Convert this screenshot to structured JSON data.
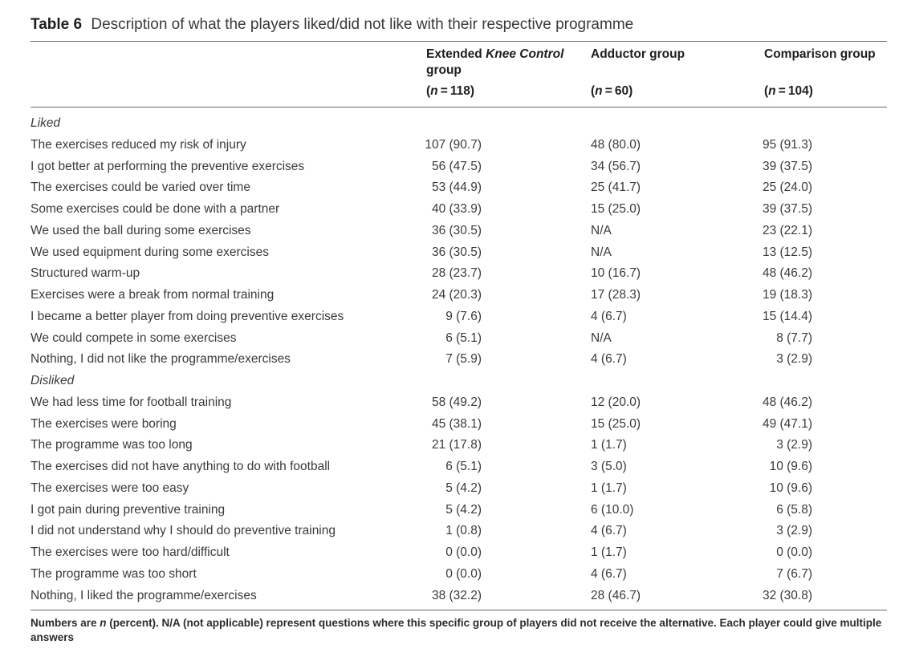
{
  "caption": {
    "number": "Table 6",
    "text": "Description of what the players liked/did not like with their respective programme"
  },
  "columns": [
    {
      "pre": "Extended ",
      "ital": "Knee Control",
      "post": " group",
      "n_prefix": "(",
      "n_var": "n",
      "n_rest": " = 118)"
    },
    {
      "pre": "Adductor group",
      "ital": "",
      "post": "",
      "n_prefix": "(",
      "n_var": "n",
      "n_rest": " = 60)"
    },
    {
      "pre": "Comparison group",
      "ital": "",
      "post": "",
      "n_prefix": "(",
      "n_var": "n",
      "n_rest": " = 104)"
    }
  ],
  "rows": [
    {
      "label": "Liked",
      "section": true,
      "v": [
        "",
        "",
        ""
      ]
    },
    {
      "label": "The exercises reduced my risk of injury",
      "v": [
        "107 (90.7)",
        "48 (80.0)",
        "95 (91.3)"
      ]
    },
    {
      "label": "I got better at performing the preventive exercises",
      "v": [
        "56 (47.5)",
        "34 (56.7)",
        "39 (37.5)"
      ]
    },
    {
      "label": "The exercises could be varied over time",
      "v": [
        "53 (44.9)",
        "25 (41.7)",
        "25 (24.0)"
      ]
    },
    {
      "label": "Some exercises could be done with a partner",
      "v": [
        "40 (33.9)",
        "15 (25.0)",
        "39 (37.5)"
      ]
    },
    {
      "label": "We used the ball during some exercises",
      "v": [
        "36 (30.5)",
        "N/A",
        "23 (22.1)"
      ]
    },
    {
      "label": "We used equipment during some exercises",
      "v": [
        "36 (30.5)",
        "N/A",
        "13 (12.5)"
      ]
    },
    {
      "label": "Structured warm-up",
      "v": [
        "28 (23.7)",
        "10 (16.7)",
        "48 (46.2)"
      ]
    },
    {
      "label": "Exercises were a break from normal training",
      "v": [
        "24 (20.3)",
        "17 (28.3)",
        "19 (18.3)"
      ]
    },
    {
      "label": "I became a better player from doing preventive exercises",
      "v": [
        "9 (7.6)",
        "4 (6.7)",
        "15 (14.4)"
      ]
    },
    {
      "label": "We could compete in some exercises",
      "v": [
        "6 (5.1)",
        "N/A",
        "8 (7.7)"
      ]
    },
    {
      "label": "Nothing, I did not like the programme/exercises",
      "v": [
        "7 (5.9)",
        "4 (6.7)",
        "3 (2.9)"
      ]
    },
    {
      "label": "Disliked",
      "section": true,
      "v": [
        "",
        "",
        ""
      ]
    },
    {
      "label": "We had less time for football training",
      "v": [
        "58 (49.2)",
        "12 (20.0)",
        "48 (46.2)"
      ]
    },
    {
      "label": "The exercises were boring",
      "v": [
        "45 (38.1)",
        "15 (25.0)",
        "49 (47.1)"
      ]
    },
    {
      "label": "The programme was too long",
      "v": [
        "21 (17.8)",
        "1 (1.7)",
        "3 (2.9)"
      ]
    },
    {
      "label": "The exercises did not have anything to do with football",
      "v": [
        "6 (5.1)",
        "3 (5.0)",
        "10 (9.6)"
      ]
    },
    {
      "label": "The exercises were too easy",
      "v": [
        "5 (4.2)",
        "1 (1.7)",
        "10 (9.6)"
      ]
    },
    {
      "label": "I got pain during preventive training",
      "v": [
        "5 (4.2)",
        "6 (10.0)",
        "6 (5.8)"
      ]
    },
    {
      "label": "I did not understand why I should do preventive training",
      "v": [
        "1 (0.8)",
        "4 (6.7)",
        "3 (2.9)"
      ]
    },
    {
      "label": "The exercises were too hard/difficult",
      "v": [
        "0 (0.0)",
        "1 (1.7)",
        "0 (0.0)"
      ]
    },
    {
      "label": "The programme was too short",
      "v": [
        "0 (0.0)",
        "4 (6.7)",
        "7 (6.7)"
      ]
    },
    {
      "label": "Nothing, I liked the programme/exercises",
      "v": [
        "38 (32.2)",
        "28 (46.7)",
        "32 (30.8)"
      ]
    }
  ],
  "footnote": {
    "pre": "Numbers are ",
    "ital": "n",
    "post": " (percent). N/A (not applicable) represent questions where this specific group of players did not receive the alternative. Each player could give multiple answers"
  }
}
